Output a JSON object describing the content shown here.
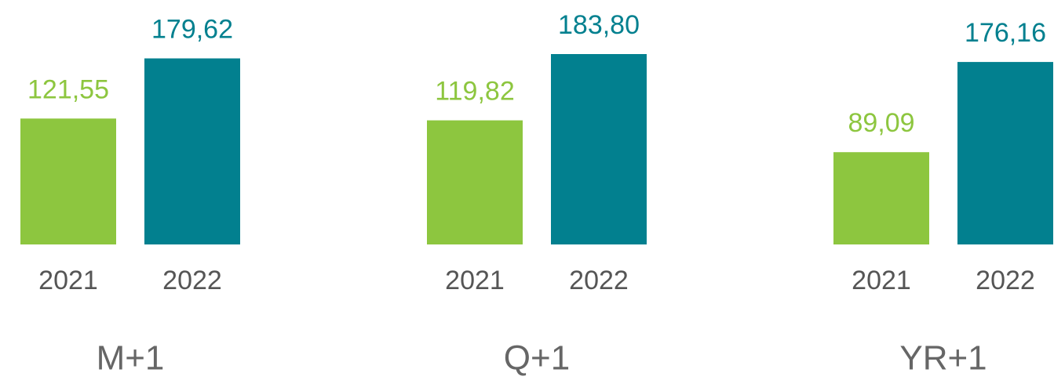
{
  "chart_data": [
    {
      "type": "bar",
      "title": "M+1",
      "categories": [
        "2021",
        "2022"
      ],
      "values": [
        121.55,
        179.62
      ],
      "value_labels": [
        "121,55",
        "179,62"
      ],
      "colors": [
        "#8dc63f",
        "#02808f"
      ]
    },
    {
      "type": "bar",
      "title": "Q+1",
      "categories": [
        "2021",
        "2022"
      ],
      "values": [
        119.82,
        183.8
      ],
      "value_labels": [
        "119,82",
        "183,80"
      ],
      "colors": [
        "#8dc63f",
        "#02808f"
      ]
    },
    {
      "type": "bar",
      "title": "YR+1",
      "categories": [
        "2021",
        "2022"
      ],
      "values": [
        89.09,
        176.16
      ],
      "value_labels": [
        "89,09",
        "176,16"
      ],
      "colors": [
        "#8dc63f",
        "#02808f"
      ]
    }
  ]
}
